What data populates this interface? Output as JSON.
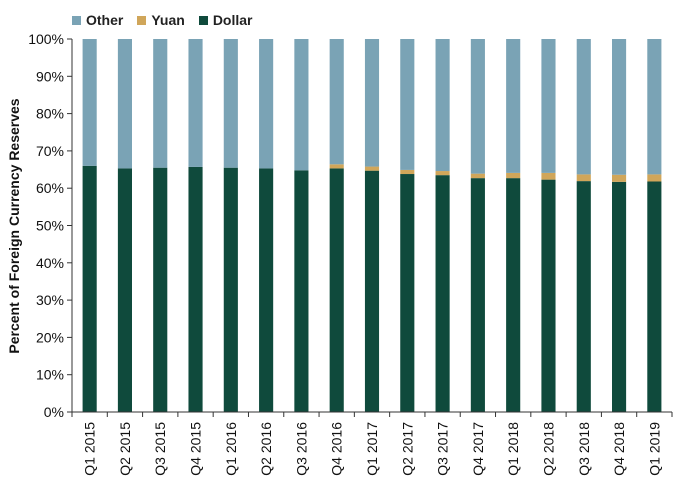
{
  "chart_data": {
    "type": "bar",
    "stacked": true,
    "categories": [
      "Q1 2015",
      "Q2 2015",
      "Q3 2015",
      "Q4 2015",
      "Q1 2016",
      "Q2 2016",
      "Q3 2016",
      "Q4 2016",
      "Q1 2017",
      "Q2 2017",
      "Q3 2017",
      "Q4 2017",
      "Q1 2018",
      "Q2 2018",
      "Q3 2018",
      "Q4 2018",
      "Q1 2019"
    ],
    "series": [
      {
        "name": "Dollar",
        "color": "#0f4a3c",
        "values": [
          66.0,
          65.3,
          65.5,
          65.7,
          65.5,
          65.3,
          64.8,
          65.3,
          64.7,
          63.8,
          63.5,
          62.7,
          62.7,
          62.3,
          61.9,
          61.7,
          61.8
        ]
      },
      {
        "name": "Yuan",
        "color": "#d0a65a",
        "values": [
          0,
          0,
          0,
          0,
          0,
          0,
          0,
          1.1,
          1.1,
          1.1,
          1.1,
          1.2,
          1.4,
          1.8,
          1.8,
          1.9,
          1.9
        ]
      },
      {
        "name": "Other",
        "color": "#7aa3b5",
        "values": [
          34.0,
          34.7,
          34.5,
          34.3,
          34.5,
          34.7,
          35.2,
          33.6,
          34.2,
          35.1,
          35.4,
          36.1,
          35.9,
          35.9,
          36.3,
          36.4,
          36.3
        ]
      }
    ],
    "legend_order": [
      "Other",
      "Yuan",
      "Dollar"
    ],
    "legend_position": "top-left",
    "ylabel": "Percent of Foreign Currency Reserves",
    "xlabel": "",
    "ylim": [
      0,
      100
    ],
    "yticks": [
      "0%",
      "10%",
      "20%",
      "30%",
      "40%",
      "50%",
      "60%",
      "70%",
      "80%",
      "90%",
      "100%"
    ],
    "grid": false
  }
}
